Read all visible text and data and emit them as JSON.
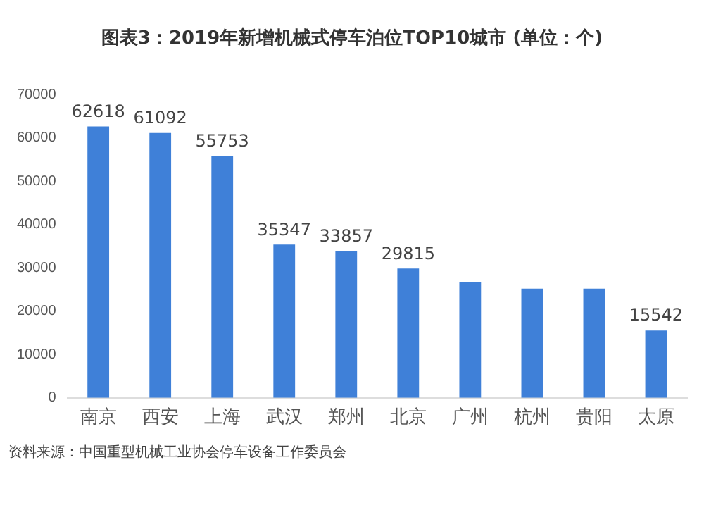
{
  "chart_data": {
    "type": "bar",
    "title": "图表3：2019年新增机械式停车泊位TOP10城市 (单位：个)",
    "categories": [
      "南京",
      "西安",
      "上海",
      "武汉",
      "郑州",
      "北京",
      "广州",
      "杭州",
      "贵阳",
      "太原"
    ],
    "values": [
      62618,
      61092,
      55753,
      35347,
      33857,
      29815,
      26700,
      25200,
      25200,
      15542
    ],
    "value_labels": [
      "62618",
      "61092",
      "55753",
      "35347",
      "33857",
      "29815",
      null,
      null,
      null,
      "15542"
    ],
    "color": "#3f80d8",
    "ylim": [
      0,
      70000
    ],
    "yticks": [
      0,
      10000,
      20000,
      30000,
      40000,
      50000,
      60000,
      70000
    ],
    "grid": false,
    "legend": false,
    "annotations": [
      "资料来源：中国重型机械工业协会停车设备工作委员会"
    ]
  }
}
